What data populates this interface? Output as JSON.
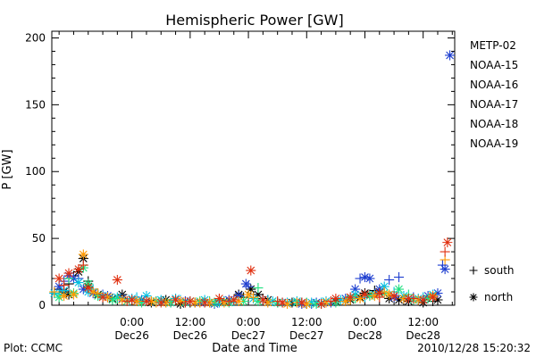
{
  "chart_data": {
    "type": "scatter",
    "title": "Hemispheric Power [GW]",
    "xlabel": "Date and Time",
    "ylabel": "P [GW]",
    "ylim": [
      0,
      205
    ],
    "xlim_hours": [
      -16.5,
      66.5
    ],
    "grid": false,
    "legend_position": "right",
    "y_ticks": [
      0,
      50,
      100,
      150,
      200
    ],
    "x_ticks": [
      {
        "hour": 0,
        "line1": "0:00",
        "line2": "Dec26"
      },
      {
        "hour": 12,
        "line1": "12:00",
        "line2": "Dec26"
      },
      {
        "hour": 24,
        "line1": "0:00",
        "line2": "Dec27"
      },
      {
        "hour": 36,
        "line1": "12:00",
        "line2": "Dec27"
      },
      {
        "hour": 48,
        "line1": "0:00",
        "line2": "Dec28"
      },
      {
        "hour": 60,
        "line1": "12:00",
        "line2": "Dec28"
      }
    ],
    "legend": {
      "series": [
        {
          "label": "METP-02",
          "color": "#000000"
        },
        {
          "label": "NOAA-15",
          "color": "#1f3fd0"
        },
        {
          "label": "NOAA-16",
          "color": "#00c0e0"
        },
        {
          "label": "NOAA-17",
          "color": "#20e080"
        },
        {
          "label": "NOAA-18",
          "color": "#ff9900"
        },
        {
          "label": "NOAA-19",
          "color": "#e03010"
        }
      ],
      "markers": [
        {
          "symbol": "+",
          "label": "south"
        },
        {
          "symbol": "*",
          "label": "north"
        }
      ]
    },
    "series": [
      {
        "name": "METP-02",
        "color": "#000000",
        "marker": "*",
        "points": [
          {
            "x": -14,
            "y": 10
          },
          {
            "x": -13,
            "y": 8
          },
          {
            "x": -11,
            "y": 25
          },
          {
            "x": -10,
            "y": 35
          },
          {
            "x": -9,
            "y": 14
          },
          {
            "x": -7,
            "y": 8
          },
          {
            "x": -4,
            "y": 5
          },
          {
            "x": -2,
            "y": 8
          },
          {
            "x": 1,
            "y": 3
          },
          {
            "x": 4,
            "y": 2
          },
          {
            "x": 7,
            "y": 4
          },
          {
            "x": 10,
            "y": 1
          },
          {
            "x": 13,
            "y": 2
          },
          {
            "x": 16,
            "y": 2
          },
          {
            "x": 19,
            "y": 3
          },
          {
            "x": 22,
            "y": 8
          },
          {
            "x": 24.5,
            "y": 12
          },
          {
            "x": 26,
            "y": 8
          },
          {
            "x": 28,
            "y": 4
          },
          {
            "x": 30,
            "y": 2
          },
          {
            "x": 33,
            "y": 2
          },
          {
            "x": 36,
            "y": 1
          },
          {
            "x": 39,
            "y": 1
          },
          {
            "x": 42,
            "y": 3
          },
          {
            "x": 45,
            "y": 4
          },
          {
            "x": 47,
            "y": 6
          },
          {
            "x": 48,
            "y": 9
          },
          {
            "x": 49,
            "y": 8
          },
          {
            "x": 51,
            "y": 10
          },
          {
            "x": 53,
            "y": 5
          },
          {
            "x": 55,
            "y": 4
          },
          {
            "x": 57,
            "y": 3
          },
          {
            "x": 60,
            "y": 2
          },
          {
            "x": 63,
            "y": 4
          }
        ]
      },
      {
        "name": "METP-02",
        "color": "#000000",
        "marker": "+",
        "points": [
          {
            "x": -15,
            "y": 12
          },
          {
            "x": -13,
            "y": 16
          },
          {
            "x": -12,
            "y": 22
          },
          {
            "x": -9,
            "y": 18
          },
          {
            "x": -5,
            "y": 6
          },
          {
            "x": 0,
            "y": 4
          },
          {
            "x": 6,
            "y": 3
          },
          {
            "x": 12,
            "y": 2
          },
          {
            "x": 18,
            "y": 4
          },
          {
            "x": 23,
            "y": 6
          },
          {
            "x": 27,
            "y": 5
          },
          {
            "x": 35,
            "y": 2
          },
          {
            "x": 44,
            "y": 3
          },
          {
            "x": 50,
            "y": 11
          },
          {
            "x": 56,
            "y": 4
          },
          {
            "x": 62,
            "y": 3
          }
        ]
      },
      {
        "name": "NOAA-15",
        "color": "#1f3fd0",
        "marker": "*",
        "points": [
          {
            "x": -15,
            "y": 14
          },
          {
            "x": -13,
            "y": 22
          },
          {
            "x": -12,
            "y": 20
          },
          {
            "x": -10,
            "y": 12
          },
          {
            "x": -8,
            "y": 9
          },
          {
            "x": -5,
            "y": 7
          },
          {
            "x": -2,
            "y": 5
          },
          {
            "x": 2,
            "y": 4
          },
          {
            "x": 5,
            "y": 3
          },
          {
            "x": 8,
            "y": 2
          },
          {
            "x": 11,
            "y": 3
          },
          {
            "x": 14,
            "y": 2
          },
          {
            "x": 17,
            "y": 1
          },
          {
            "x": 20,
            "y": 4
          },
          {
            "x": 22,
            "y": 7
          },
          {
            "x": 23.5,
            "y": 16
          },
          {
            "x": 27,
            "y": 4
          },
          {
            "x": 31,
            "y": 2
          },
          {
            "x": 35,
            "y": 1
          },
          {
            "x": 38,
            "y": 2
          },
          {
            "x": 41,
            "y": 2
          },
          {
            "x": 44,
            "y": 5
          },
          {
            "x": 46,
            "y": 12
          },
          {
            "x": 48,
            "y": 21
          },
          {
            "x": 49,
            "y": 20
          },
          {
            "x": 51,
            "y": 12
          },
          {
            "x": 54,
            "y": 6
          },
          {
            "x": 57,
            "y": 5
          },
          {
            "x": 59,
            "y": 4
          },
          {
            "x": 61,
            "y": 7
          },
          {
            "x": 63,
            "y": 9
          },
          {
            "x": 64.5,
            "y": 27
          },
          {
            "x": 65.5,
            "y": 187
          }
        ]
      },
      {
        "name": "NOAA-15",
        "color": "#1f3fd0",
        "marker": "+",
        "points": [
          {
            "x": -14,
            "y": 18
          },
          {
            "x": -11,
            "y": 20
          },
          {
            "x": -6,
            "y": 8
          },
          {
            "x": 3,
            "y": 4
          },
          {
            "x": 15,
            "y": 2
          },
          {
            "x": 24,
            "y": 14
          },
          {
            "x": 37,
            "y": 1
          },
          {
            "x": 47,
            "y": 20
          },
          {
            "x": 53,
            "y": 19
          },
          {
            "x": 55,
            "y": 21
          },
          {
            "x": 58,
            "y": 6
          },
          {
            "x": 64,
            "y": 30
          }
        ]
      },
      {
        "name": "NOAA-16",
        "color": "#00c0e0",
        "marker": "*",
        "points": [
          {
            "x": -16,
            "y": 9
          },
          {
            "x": -14,
            "y": 11
          },
          {
            "x": -11,
            "y": 17
          },
          {
            "x": -9,
            "y": 10
          },
          {
            "x": -6,
            "y": 7
          },
          {
            "x": -3,
            "y": 6
          },
          {
            "x": 0,
            "y": 5
          },
          {
            "x": 3,
            "y": 7
          },
          {
            "x": 6,
            "y": 4
          },
          {
            "x": 9,
            "y": 5
          },
          {
            "x": 12,
            "y": 3
          },
          {
            "x": 15,
            "y": 4
          },
          {
            "x": 18,
            "y": 2
          },
          {
            "x": 21,
            "y": 3
          },
          {
            "x": 25,
            "y": 5
          },
          {
            "x": 29,
            "y": 3
          },
          {
            "x": 32,
            "y": 2
          },
          {
            "x": 34,
            "y": 3
          },
          {
            "x": 37,
            "y": 2
          },
          {
            "x": 40,
            "y": 3
          },
          {
            "x": 43,
            "y": 4
          },
          {
            "x": 46,
            "y": 8
          },
          {
            "x": 50,
            "y": 8
          },
          {
            "x": 52,
            "y": 14
          },
          {
            "x": 56,
            "y": 7
          },
          {
            "x": 59,
            "y": 5
          },
          {
            "x": 62,
            "y": 8
          }
        ]
      },
      {
        "name": "NOAA-16",
        "color": "#00c0e0",
        "marker": "+",
        "points": [
          {
            "x": -15,
            "y": 8
          },
          {
            "x": -8,
            "y": 12
          },
          {
            "x": 1,
            "y": 6
          },
          {
            "x": 10,
            "y": 4
          },
          {
            "x": 19,
            "y": 3
          },
          {
            "x": 28,
            "y": 4
          },
          {
            "x": 39,
            "y": 2
          },
          {
            "x": 48,
            "y": 6
          },
          {
            "x": 54,
            "y": 10
          },
          {
            "x": 60,
            "y": 6
          }
        ]
      },
      {
        "name": "NOAA-17",
        "color": "#20e080",
        "marker": "*",
        "points": [
          {
            "x": -15,
            "y": 6
          },
          {
            "x": -12,
            "y": 9
          },
          {
            "x": -10,
            "y": 28
          },
          {
            "x": -9,
            "y": 16
          },
          {
            "x": -7,
            "y": 7
          },
          {
            "x": -4,
            "y": 4
          },
          {
            "x": -1,
            "y": 3
          },
          {
            "x": 2,
            "y": 2
          },
          {
            "x": 5,
            "y": 3
          },
          {
            "x": 8,
            "y": 2
          },
          {
            "x": 11,
            "y": 2
          },
          {
            "x": 14,
            "y": 3
          },
          {
            "x": 17,
            "y": 2
          },
          {
            "x": 20,
            "y": 2
          },
          {
            "x": 23,
            "y": 3
          },
          {
            "x": 26,
            "y": 3
          },
          {
            "x": 30,
            "y": 2
          },
          {
            "x": 34,
            "y": 2
          },
          {
            "x": 38,
            "y": 1
          },
          {
            "x": 42,
            "y": 2
          },
          {
            "x": 45,
            "y": 5
          },
          {
            "x": 49,
            "y": 7
          },
          {
            "x": 52,
            "y": 9
          },
          {
            "x": 55,
            "y": 12
          },
          {
            "x": 58,
            "y": 4
          },
          {
            "x": 61,
            "y": 5
          }
        ]
      },
      {
        "name": "NOAA-17",
        "color": "#20e080",
        "marker": "+",
        "points": [
          {
            "x": -13,
            "y": 20
          },
          {
            "x": -3,
            "y": 5
          },
          {
            "x": 7,
            "y": 2
          },
          {
            "x": 16,
            "y": 3
          },
          {
            "x": 26,
            "y": 13
          },
          {
            "x": 36,
            "y": 2
          },
          {
            "x": 46,
            "y": 5
          },
          {
            "x": 57,
            "y": 8
          }
        ]
      },
      {
        "name": "NOAA-18",
        "color": "#ff9900",
        "marker": "*",
        "points": [
          {
            "x": -14,
            "y": 7
          },
          {
            "x": -12,
            "y": 8
          },
          {
            "x": -10,
            "y": 38
          },
          {
            "x": -8,
            "y": 10
          },
          {
            "x": -5,
            "y": 6
          },
          {
            "x": -2,
            "y": 4
          },
          {
            "x": 1,
            "y": 3
          },
          {
            "x": 4,
            "y": 3
          },
          {
            "x": 7,
            "y": 2
          },
          {
            "x": 10,
            "y": 3
          },
          {
            "x": 13,
            "y": 2
          },
          {
            "x": 16,
            "y": 2
          },
          {
            "x": 19,
            "y": 2
          },
          {
            "x": 22,
            "y": 3
          },
          {
            "x": 24,
            "y": 8
          },
          {
            "x": 28,
            "y": 2
          },
          {
            "x": 32,
            "y": 1
          },
          {
            "x": 36,
            "y": 1
          },
          {
            "x": 40,
            "y": 2
          },
          {
            "x": 44,
            "y": 3
          },
          {
            "x": 47,
            "y": 5
          },
          {
            "x": 50,
            "y": 7
          },
          {
            "x": 53,
            "y": 8
          },
          {
            "x": 56,
            "y": 5
          },
          {
            "x": 59,
            "y": 4
          },
          {
            "x": 62,
            "y": 7
          }
        ]
      },
      {
        "name": "NOAA-18",
        "color": "#ff9900",
        "marker": "+",
        "points": [
          {
            "x": -16,
            "y": 10
          },
          {
            "x": -7,
            "y": 9
          },
          {
            "x": 5,
            "y": 2
          },
          {
            "x": 14,
            "y": 2
          },
          {
            "x": 25,
            "y": 6
          },
          {
            "x": 34,
            "y": 2
          },
          {
            "x": 45,
            "y": 4
          },
          {
            "x": 52,
            "y": 10
          },
          {
            "x": 64.5,
            "y": 34
          }
        ]
      },
      {
        "name": "NOAA-19",
        "color": "#e03010",
        "marker": "*",
        "points": [
          {
            "x": -15,
            "y": 20
          },
          {
            "x": -13,
            "y": 24
          },
          {
            "x": -11,
            "y": 27
          },
          {
            "x": -9,
            "y": 13
          },
          {
            "x": -6,
            "y": 6
          },
          {
            "x": -3,
            "y": 19
          },
          {
            "x": 0,
            "y": 4
          },
          {
            "x": 3,
            "y": 3
          },
          {
            "x": 6,
            "y": 2
          },
          {
            "x": 9,
            "y": 4
          },
          {
            "x": 12,
            "y": 3
          },
          {
            "x": 15,
            "y": 2
          },
          {
            "x": 18,
            "y": 5
          },
          {
            "x": 21,
            "y": 4
          },
          {
            "x": 24.5,
            "y": 26
          },
          {
            "x": 27,
            "y": 4
          },
          {
            "x": 31,
            "y": 2
          },
          {
            "x": 35,
            "y": 2
          },
          {
            "x": 39,
            "y": 1
          },
          {
            "x": 42,
            "y": 5
          },
          {
            "x": 45,
            "y": 6
          },
          {
            "x": 48,
            "y": 8
          },
          {
            "x": 51,
            "y": 9
          },
          {
            "x": 54,
            "y": 7
          },
          {
            "x": 57,
            "y": 5
          },
          {
            "x": 60,
            "y": 4
          },
          {
            "x": 62,
            "y": 6
          },
          {
            "x": 65,
            "y": 47
          }
        ]
      },
      {
        "name": "NOAA-19",
        "color": "#e03010",
        "marker": "+",
        "points": [
          {
            "x": -14,
            "y": 15
          },
          {
            "x": -10,
            "y": 30
          },
          {
            "x": -1,
            "y": 3
          },
          {
            "x": 11,
            "y": 2
          },
          {
            "x": 20,
            "y": 3
          },
          {
            "x": 30,
            "y": 3
          },
          {
            "x": 41,
            "y": 3
          },
          {
            "x": 51,
            "y": 6
          },
          {
            "x": 58,
            "y": 5
          },
          {
            "x": 64.5,
            "y": 40
          }
        ]
      }
    ]
  },
  "footer": {
    "left": "Plot: CCMC",
    "center": "Date and Time",
    "right": "2010/12/28 15:20:32"
  }
}
